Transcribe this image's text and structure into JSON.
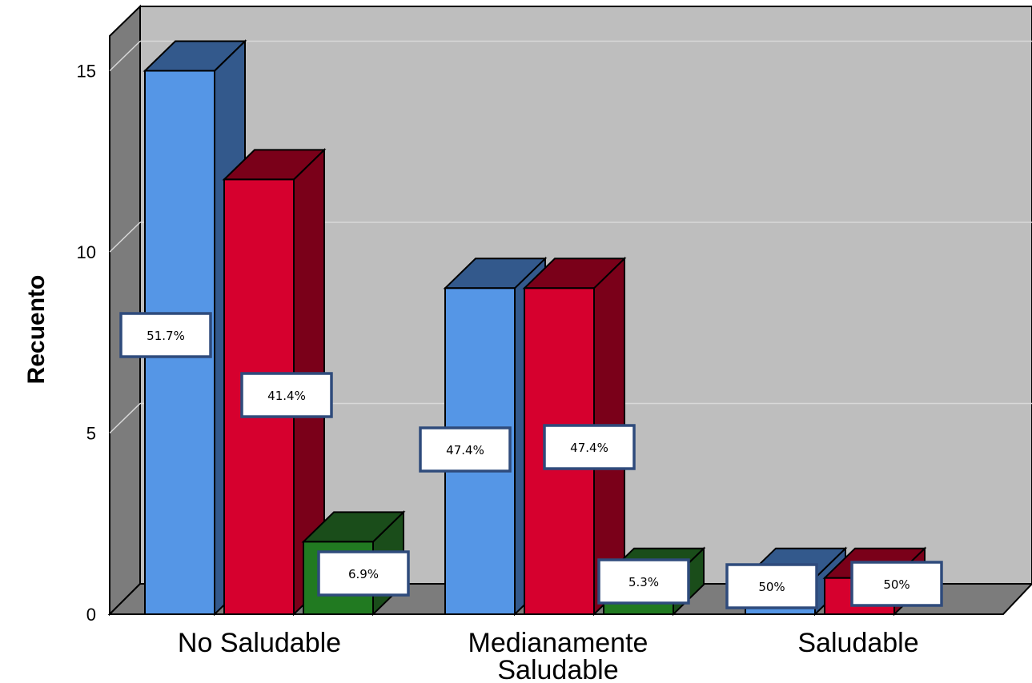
{
  "chart_data": {
    "type": "bar",
    "style": "3d-clustered",
    "categories": [
      "No Saludable",
      "Medianamente Saludable",
      "Saludable"
    ],
    "category_lines": [
      [
        "No Saludable"
      ],
      [
        "Medianamente",
        "Saludable"
      ],
      [
        "Saludable"
      ]
    ],
    "series": [
      {
        "values": [
          15,
          9,
          1
        ],
        "labels": [
          "51.7%",
          "47.4%",
          "50%"
        ],
        "color": "#5596E6",
        "top_color": "#33598C",
        "side_color": "#33598C"
      },
      {
        "values": [
          12,
          9,
          1
        ],
        "labels": [
          "41.4%",
          "47.4%",
          "50%"
        ],
        "color": "#D6002E",
        "top_color": "#7A0019",
        "side_color": "#7A0019"
      },
      {
        "values": [
          2,
          1,
          0
        ],
        "labels": [
          "6.9%",
          "5.3%",
          null
        ],
        "color": "#217A21",
        "top_color": "#1A4D1A",
        "side_color": "#1A4D1A"
      }
    ],
    "ylabel": "Recuento",
    "xlabel": "",
    "ylim": [
      0,
      15
    ],
    "yticks": [
      0,
      5,
      10,
      15
    ],
    "grid": true,
    "legend": "none",
    "wall_color": "#BEBEBE",
    "side_wall_color": "#7C7C7C",
    "floor_color": "#7C7C7C"
  }
}
